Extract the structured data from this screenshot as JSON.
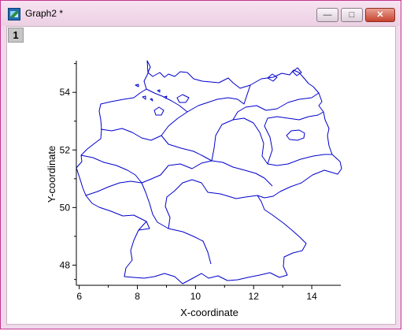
{
  "window": {
    "title": "Graph2 *",
    "min_symbol": "—",
    "max_symbol": "□",
    "close_symbol": "✕",
    "layer_label": "1"
  },
  "colors": {
    "map_line": "#0000cc",
    "window_border": "#c4358f",
    "layer_badge": "#c6c6c6"
  },
  "chart_data": {
    "type": "line",
    "xlabel": "X-coordinate",
    "ylabel": "Y-coordinate",
    "xlim": [
      5.9,
      15.0
    ],
    "ylim": [
      47.3,
      55.1
    ],
    "x_ticks": [
      "6",
      "8",
      "10",
      "12",
      "14"
    ],
    "y_ticks": [
      "48",
      "50",
      "52",
      "54"
    ],
    "grid": false
  }
}
